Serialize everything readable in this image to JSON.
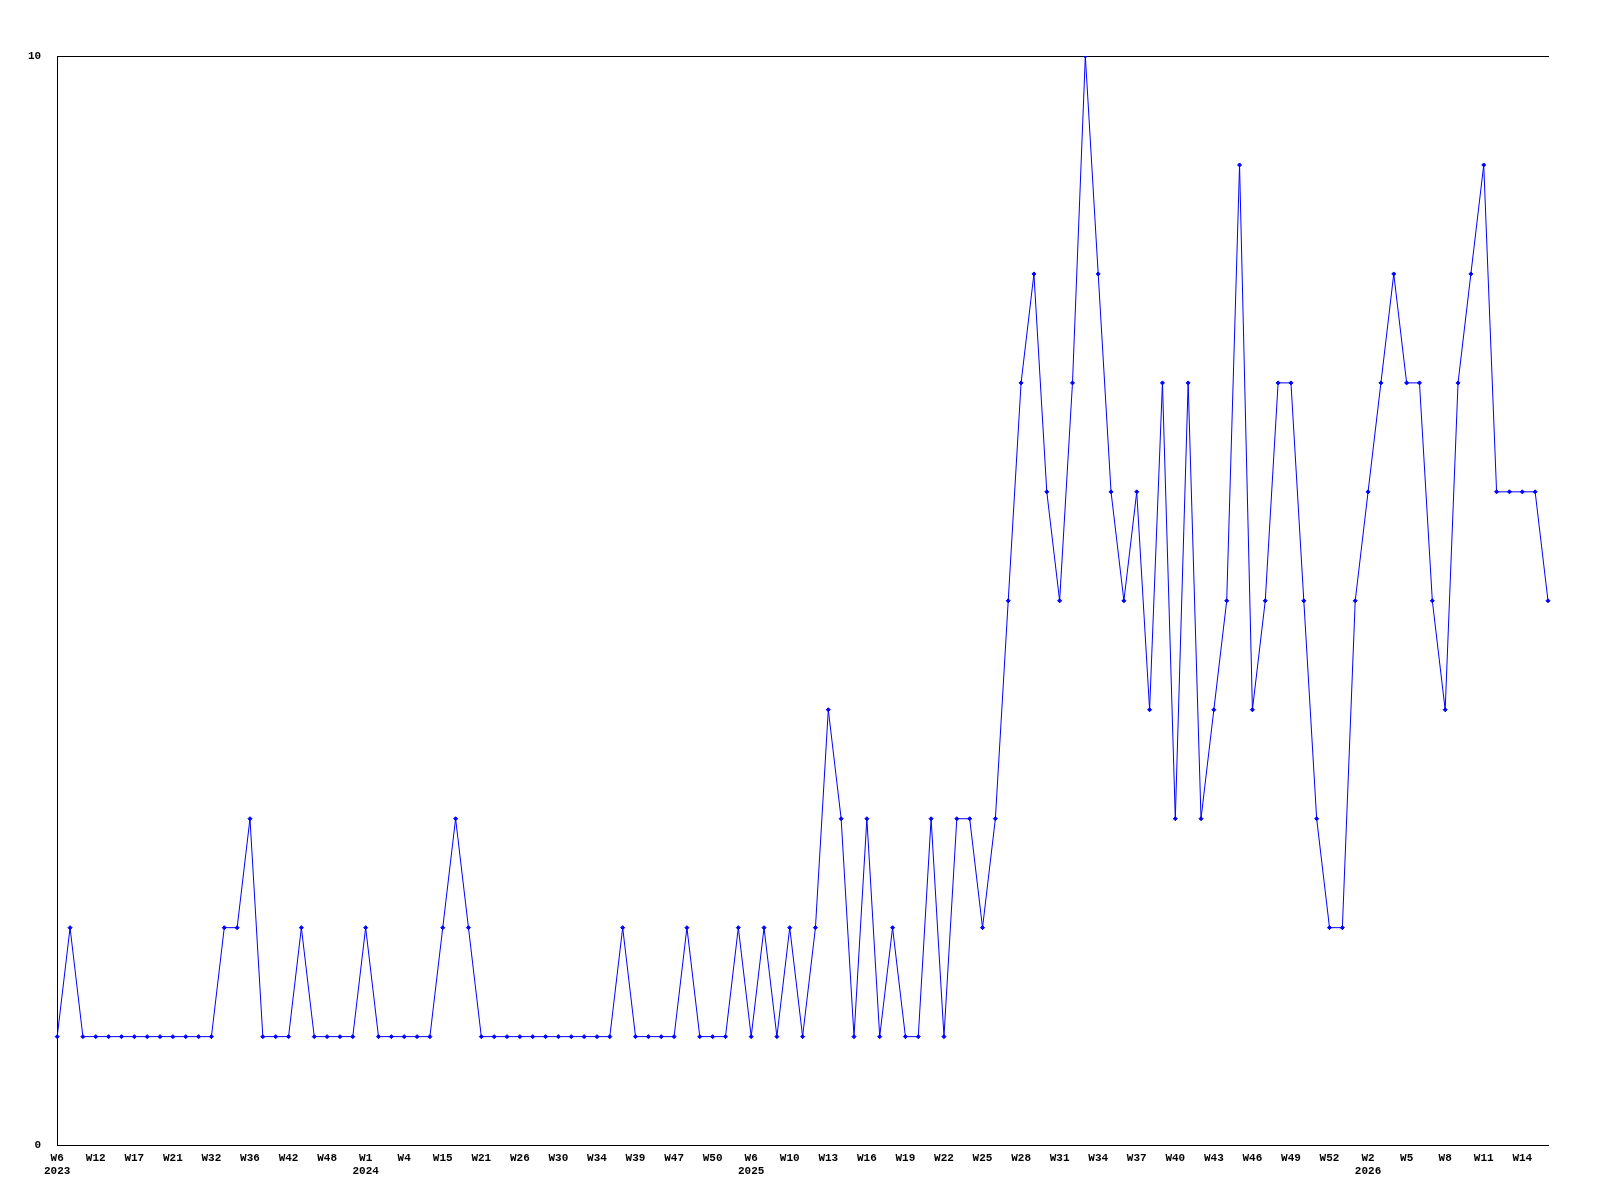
{
  "chart_data": {
    "type": "line",
    "categories": [
      "W6\n2023",
      null,
      null,
      "W12",
      null,
      null,
      "W17",
      null,
      null,
      "W21",
      null,
      null,
      "W32",
      null,
      null,
      "W36",
      null,
      null,
      "W42",
      null,
      null,
      "W48",
      null,
      null,
      "W1\n2024",
      null,
      null,
      "W4",
      null,
      null,
      "W15",
      null,
      null,
      "W21",
      null,
      null,
      "W26",
      null,
      null,
      "W30",
      null,
      null,
      "W34",
      null,
      null,
      "W39",
      null,
      null,
      "W47",
      null,
      null,
      "W50",
      null,
      null,
      "W6\n2025",
      null,
      null,
      "W10",
      null,
      null,
      "W13",
      null,
      null,
      "W16",
      null,
      null,
      "W19",
      null,
      null,
      "W22",
      null,
      null,
      "W25",
      null,
      null,
      "W28",
      null,
      null,
      "W31",
      null,
      null,
      "W34",
      null,
      null,
      "W37",
      null,
      null,
      "W40",
      null,
      null,
      "W43",
      null,
      null,
      "W46",
      null,
      null,
      "W49",
      null,
      null,
      "W52",
      null,
      null,
      "W2\n2026",
      null,
      null,
      "W5",
      null,
      null,
      "W8",
      null,
      null,
      "W11",
      null,
      null,
      "W14",
      null,
      null
    ],
    "series": [
      {
        "color": "#0000ff",
        "values": [
          1,
          2,
          1,
          1,
          1,
          1,
          1,
          1,
          1,
          1,
          1,
          1,
          1,
          2,
          2,
          3,
          1,
          1,
          1,
          2,
          1,
          1,
          1,
          1,
          2,
          1,
          1,
          1,
          1,
          1,
          2,
          3,
          2,
          1,
          1,
          1,
          1,
          1,
          1,
          1,
          1,
          1,
          1,
          1,
          2,
          1,
          1,
          1,
          1,
          2,
          1,
          1,
          1,
          2,
          1,
          2,
          1,
          2,
          1,
          2,
          4,
          3,
          1,
          3,
          1,
          2,
          1,
          1,
          3,
          1,
          3,
          3,
          2,
          3,
          5,
          7,
          8,
          6,
          5,
          7,
          10,
          8,
          6,
          5,
          6,
          4,
          7,
          3,
          7,
          3,
          4,
          5,
          9,
          4,
          5,
          7,
          7,
          5,
          3,
          2,
          2,
          5,
          6,
          7,
          8,
          7,
          7,
          5,
          4,
          7,
          8,
          9,
          6,
          6,
          6,
          6,
          5
        ]
      }
    ],
    "ylim": [
      0,
      10
    ],
    "yticks": [
      0,
      10
    ],
    "grid": false,
    "legend": false,
    "marker": "diamond",
    "line_style": "solid"
  }
}
